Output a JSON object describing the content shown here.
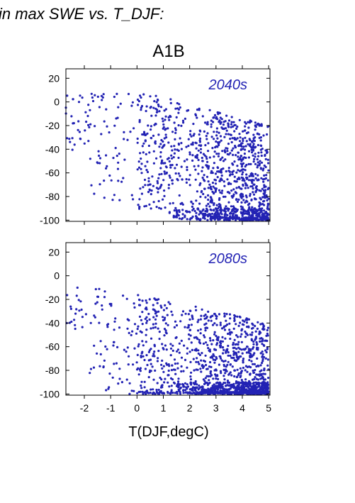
{
  "page": {
    "heading": "in max SWE vs. T_DJF:",
    "title": "A1B"
  },
  "colors": {
    "points": "#2323b4",
    "label": "#2323b4"
  },
  "chart_data": [
    {
      "type": "scatter",
      "panel_label": "2040s",
      "xlim": [
        -2.7,
        5.05
      ],
      "ylim": [
        -101,
        28
      ],
      "yticks": [
        20,
        0,
        -20,
        -40,
        -60,
        -80,
        -100
      ],
      "xticks": [
        -2,
        -1,
        0,
        1,
        2,
        3,
        4,
        5
      ],
      "show_x_tick_labels": false,
      "grid": false,
      "n_points": 1400,
      "seed": 12345
    },
    {
      "type": "scatter",
      "panel_label": "2080s",
      "xlim": [
        -2.7,
        5.05
      ],
      "ylim": [
        -101,
        28
      ],
      "yticks": [
        20,
        0,
        -20,
        -40,
        -60,
        -80,
        -100
      ],
      "xticks": [
        -2,
        -1,
        0,
        1,
        2,
        3,
        4,
        5
      ],
      "xticklabels": [
        "-2",
        "-1",
        "0",
        "1",
        "2",
        "3",
        "4",
        "5"
      ],
      "xlabel": "T(DJF,degC)",
      "show_x_tick_labels": true,
      "grid": false,
      "n_points": 1500,
      "seed": 67890
    }
  ]
}
